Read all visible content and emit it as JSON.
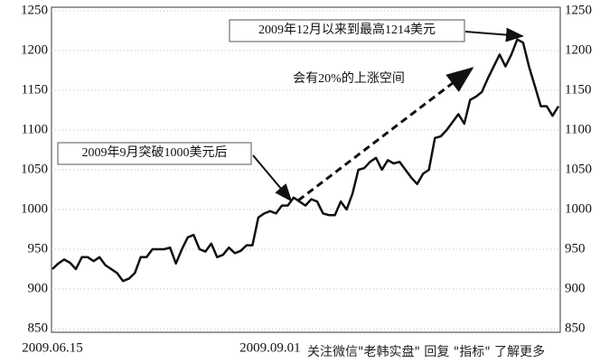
{
  "chart_data": {
    "type": "line",
    "categories": [
      "2009.06.15",
      null,
      null,
      null,
      null,
      null,
      null,
      null,
      null,
      null,
      null,
      null,
      null,
      null,
      null,
      null,
      null,
      null,
      null,
      null,
      null,
      null,
      null,
      null,
      null,
      null,
      null,
      null,
      null,
      null,
      null,
      null,
      null,
      null,
      null,
      null,
      null,
      "2009.09.01",
      null,
      null,
      null,
      null,
      null,
      null,
      null,
      null,
      null,
      null,
      null,
      null,
      null,
      null,
      null,
      null,
      null,
      null,
      null,
      null,
      null,
      null,
      null,
      null,
      null,
      null,
      null,
      null,
      null,
      null,
      null,
      null,
      null,
      null,
      null,
      null,
      null,
      null,
      null,
      null,
      null,
      null,
      null,
      null,
      null,
      null,
      null,
      null,
      null
    ],
    "series": [
      {
        "color": "#111111",
        "values": [
          925,
          932,
          937,
          933,
          925,
          940,
          940,
          935,
          940,
          930,
          925,
          920,
          910,
          913,
          920,
          940,
          940,
          950,
          950,
          950,
          952,
          932,
          950,
          965,
          968,
          950,
          947,
          957,
          940,
          943,
          952,
          945,
          948,
          955,
          955,
          990,
          995,
          998,
          995,
          1005,
          1005,
          1015,
          1010,
          1005,
          1013,
          1010,
          995,
          993,
          993,
          1010,
          1000,
          1020,
          1050,
          1052,
          1060,
          1065,
          1050,
          1062,
          1058,
          1060,
          1050,
          1040,
          1032,
          1045,
          1050,
          1090,
          1092,
          1100,
          1110,
          1120,
          1108,
          1138,
          1142,
          1148,
          1165,
          1180,
          1195,
          1180,
          1195,
          1214,
          1210,
          1180,
          1155,
          1130,
          1130,
          1118,
          1130
        ]
      }
    ],
    "ylim": [
      850,
      1250
    ],
    "yticks": [
      850,
      900,
      950,
      1000,
      1050,
      1100,
      1150,
      1200,
      1250
    ],
    "grid": true,
    "annotations": [
      "2009年12月以来到最高1214美元",
      "会有20%的上涨空间",
      "2009年9月突破1000美元后"
    ]
  },
  "watermark": "关注微信\"老韩实盘\" 回复 \"指标\" 了解更多"
}
